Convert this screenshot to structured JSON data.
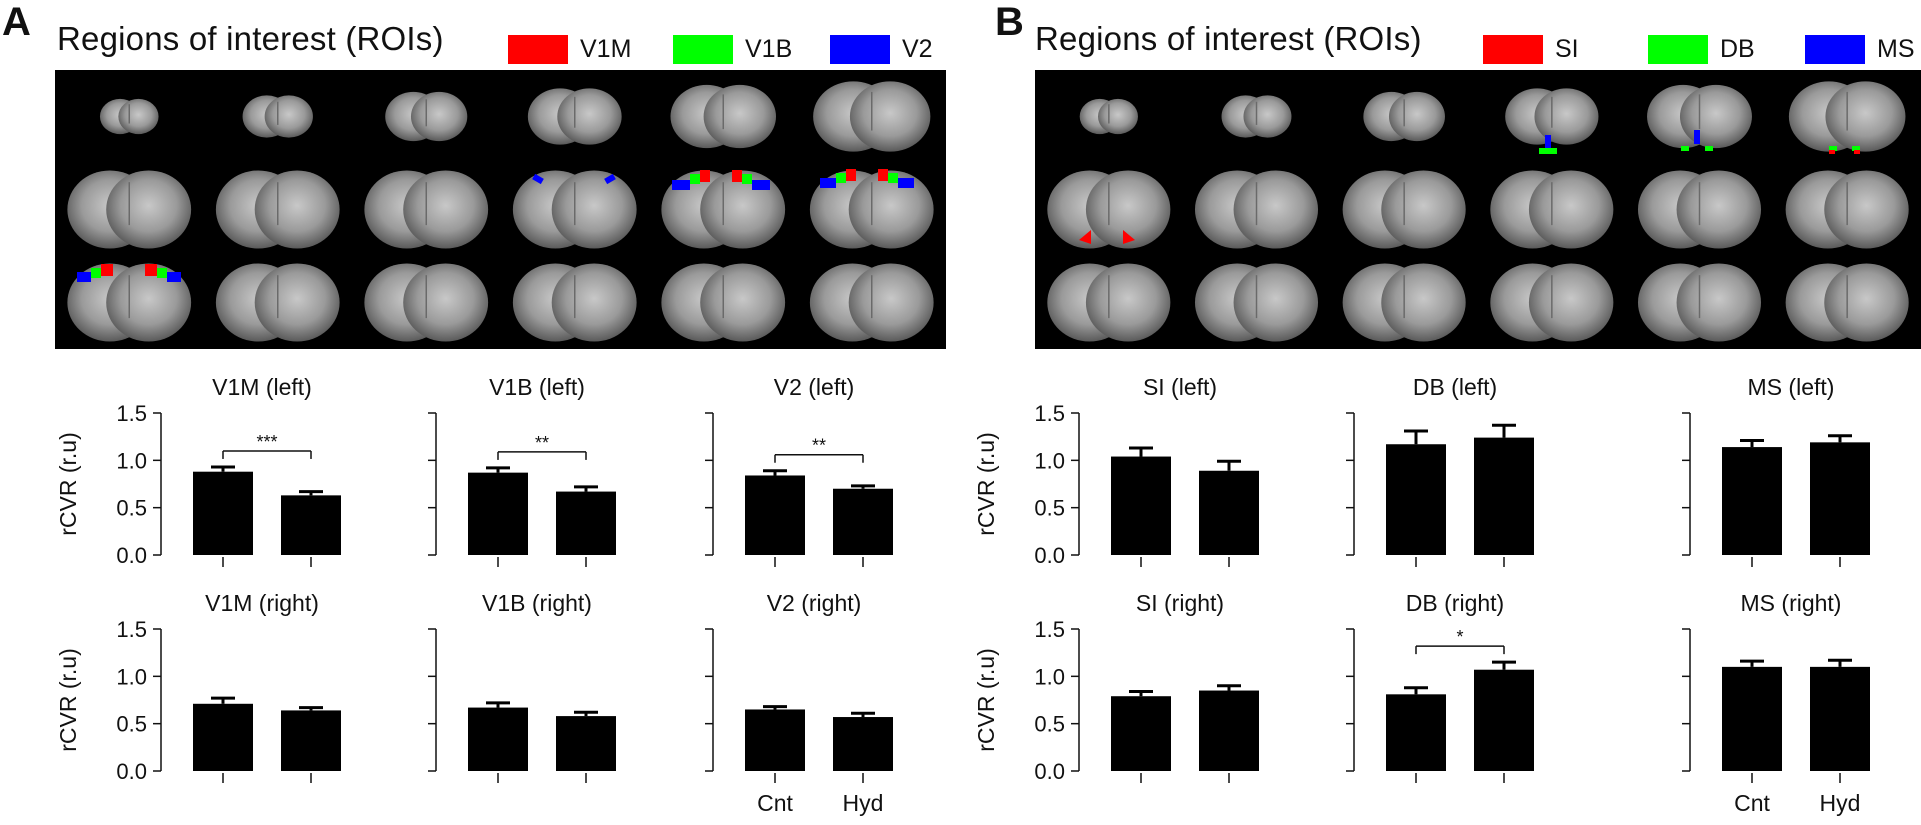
{
  "panels": [
    {
      "letter": "A",
      "title": "Regions of interest (ROIs)",
      "legend": [
        {
          "label": "V1M",
          "color": "#ff0000"
        },
        {
          "label": "V1B",
          "color": "#00ff00"
        },
        {
          "label": "V2",
          "color": "#0000ff"
        }
      ]
    },
    {
      "letter": "B",
      "title": "Regions of interest (ROIs)",
      "legend": [
        {
          "label": "SI",
          "color": "#ff0000"
        },
        {
          "label": "DB",
          "color": "#00ff00"
        },
        {
          "label": "MS",
          "color": "#0000ff"
        }
      ]
    }
  ],
  "brain_icon": "mri-brain-slice-grid",
  "chart_data": [
    {
      "type": "bar",
      "panel": "A",
      "title": "V1M (left)",
      "categories": [
        "Cnt",
        "Hyd"
      ],
      "values": [
        0.88,
        0.63
      ],
      "errors": [
        0.05,
        0.04
      ],
      "ylabel": "rCVR (r.u)",
      "ylim": [
        0,
        1.5
      ],
      "yticks": [
        "0.0",
        "0.5",
        "1.0",
        "1.5"
      ],
      "significance": "***",
      "show_xticklabels": false
    },
    {
      "type": "bar",
      "panel": "A",
      "title": "V1B (left)",
      "categories": [
        "Cnt",
        "Hyd"
      ],
      "values": [
        0.87,
        0.67
      ],
      "errors": [
        0.05,
        0.05
      ],
      "ylabel": "",
      "ylim": [
        0,
        1.5
      ],
      "yticks": [],
      "significance": "**",
      "show_xticklabels": false
    },
    {
      "type": "bar",
      "panel": "A",
      "title": "V2 (left)",
      "categories": [
        "Cnt",
        "Hyd"
      ],
      "values": [
        0.84,
        0.7
      ],
      "errors": [
        0.05,
        0.03
      ],
      "ylabel": "",
      "ylim": [
        0,
        1.5
      ],
      "yticks": [],
      "significance": "**",
      "show_xticklabels": false
    },
    {
      "type": "bar",
      "panel": "A",
      "title": "V1M (right)",
      "categories": [
        "Cnt",
        "Hyd"
      ],
      "values": [
        0.71,
        0.64
      ],
      "errors": [
        0.06,
        0.03
      ],
      "ylabel": "rCVR (r.u)",
      "ylim": [
        0,
        1.5
      ],
      "yticks": [
        "0.0",
        "0.5",
        "1.0",
        "1.5"
      ],
      "significance": "",
      "show_xticklabels": false
    },
    {
      "type": "bar",
      "panel": "A",
      "title": "V1B (right)",
      "categories": [
        "Cnt",
        "Hyd"
      ],
      "values": [
        0.67,
        0.58
      ],
      "errors": [
        0.05,
        0.04
      ],
      "ylabel": "",
      "ylim": [
        0,
        1.5
      ],
      "yticks": [],
      "significance": "",
      "show_xticklabels": false
    },
    {
      "type": "bar",
      "panel": "A",
      "title": "V2 (right)",
      "categories": [
        "Cnt",
        "Hyd"
      ],
      "values": [
        0.65,
        0.57
      ],
      "errors": [
        0.03,
        0.04
      ],
      "ylabel": "",
      "ylim": [
        0,
        1.5
      ],
      "yticks": [],
      "significance": "",
      "show_xticklabels": true
    },
    {
      "type": "bar",
      "panel": "B",
      "title": "SI (left)",
      "categories": [
        "Cnt",
        "Hyd"
      ],
      "values": [
        1.04,
        0.89
      ],
      "errors": [
        0.09,
        0.1
      ],
      "ylabel": "rCVR (r.u)",
      "ylim": [
        0,
        1.5
      ],
      "yticks": [
        "0.0",
        "0.5",
        "1.0",
        "1.5"
      ],
      "significance": "",
      "show_xticklabels": false
    },
    {
      "type": "bar",
      "panel": "B",
      "title": "DB (left)",
      "categories": [
        "Cnt",
        "Hyd"
      ],
      "values": [
        1.17,
        1.24
      ],
      "errors": [
        0.14,
        0.13
      ],
      "ylabel": "",
      "ylim": [
        0,
        1.5
      ],
      "yticks": [],
      "significance": "",
      "show_xticklabels": false
    },
    {
      "type": "bar",
      "panel": "B",
      "title": "MS (left)",
      "categories": [
        "Cnt",
        "Hyd"
      ],
      "values": [
        1.14,
        1.19
      ],
      "errors": [
        0.07,
        0.07
      ],
      "ylabel": "",
      "ylim": [
        0,
        1.5
      ],
      "yticks": [],
      "significance": "",
      "show_xticklabels": false
    },
    {
      "type": "bar",
      "panel": "B",
      "title": "SI (right)",
      "categories": [
        "Cnt",
        "Hyd"
      ],
      "values": [
        0.79,
        0.85
      ],
      "errors": [
        0.05,
        0.05
      ],
      "ylabel": "rCVR (r.u)",
      "ylim": [
        0,
        1.5
      ],
      "yticks": [
        "0.0",
        "0.5",
        "1.0",
        "1.5"
      ],
      "significance": "",
      "show_xticklabels": false
    },
    {
      "type": "bar",
      "panel": "B",
      "title": "DB (right)",
      "categories": [
        "Cnt",
        "Hyd"
      ],
      "values": [
        0.81,
        1.07
      ],
      "errors": [
        0.07,
        0.08
      ],
      "ylabel": "",
      "ylim": [
        0,
        1.5
      ],
      "yticks": [],
      "significance": "*",
      "show_xticklabels": false
    },
    {
      "type": "bar",
      "panel": "B",
      "title": "MS (right)",
      "categories": [
        "Cnt",
        "Hyd"
      ],
      "values": [
        1.1,
        1.1
      ],
      "errors": [
        0.06,
        0.07
      ],
      "ylabel": "",
      "ylim": [
        0,
        1.5
      ],
      "yticks": [],
      "significance": "",
      "show_xticklabels": true
    }
  ]
}
